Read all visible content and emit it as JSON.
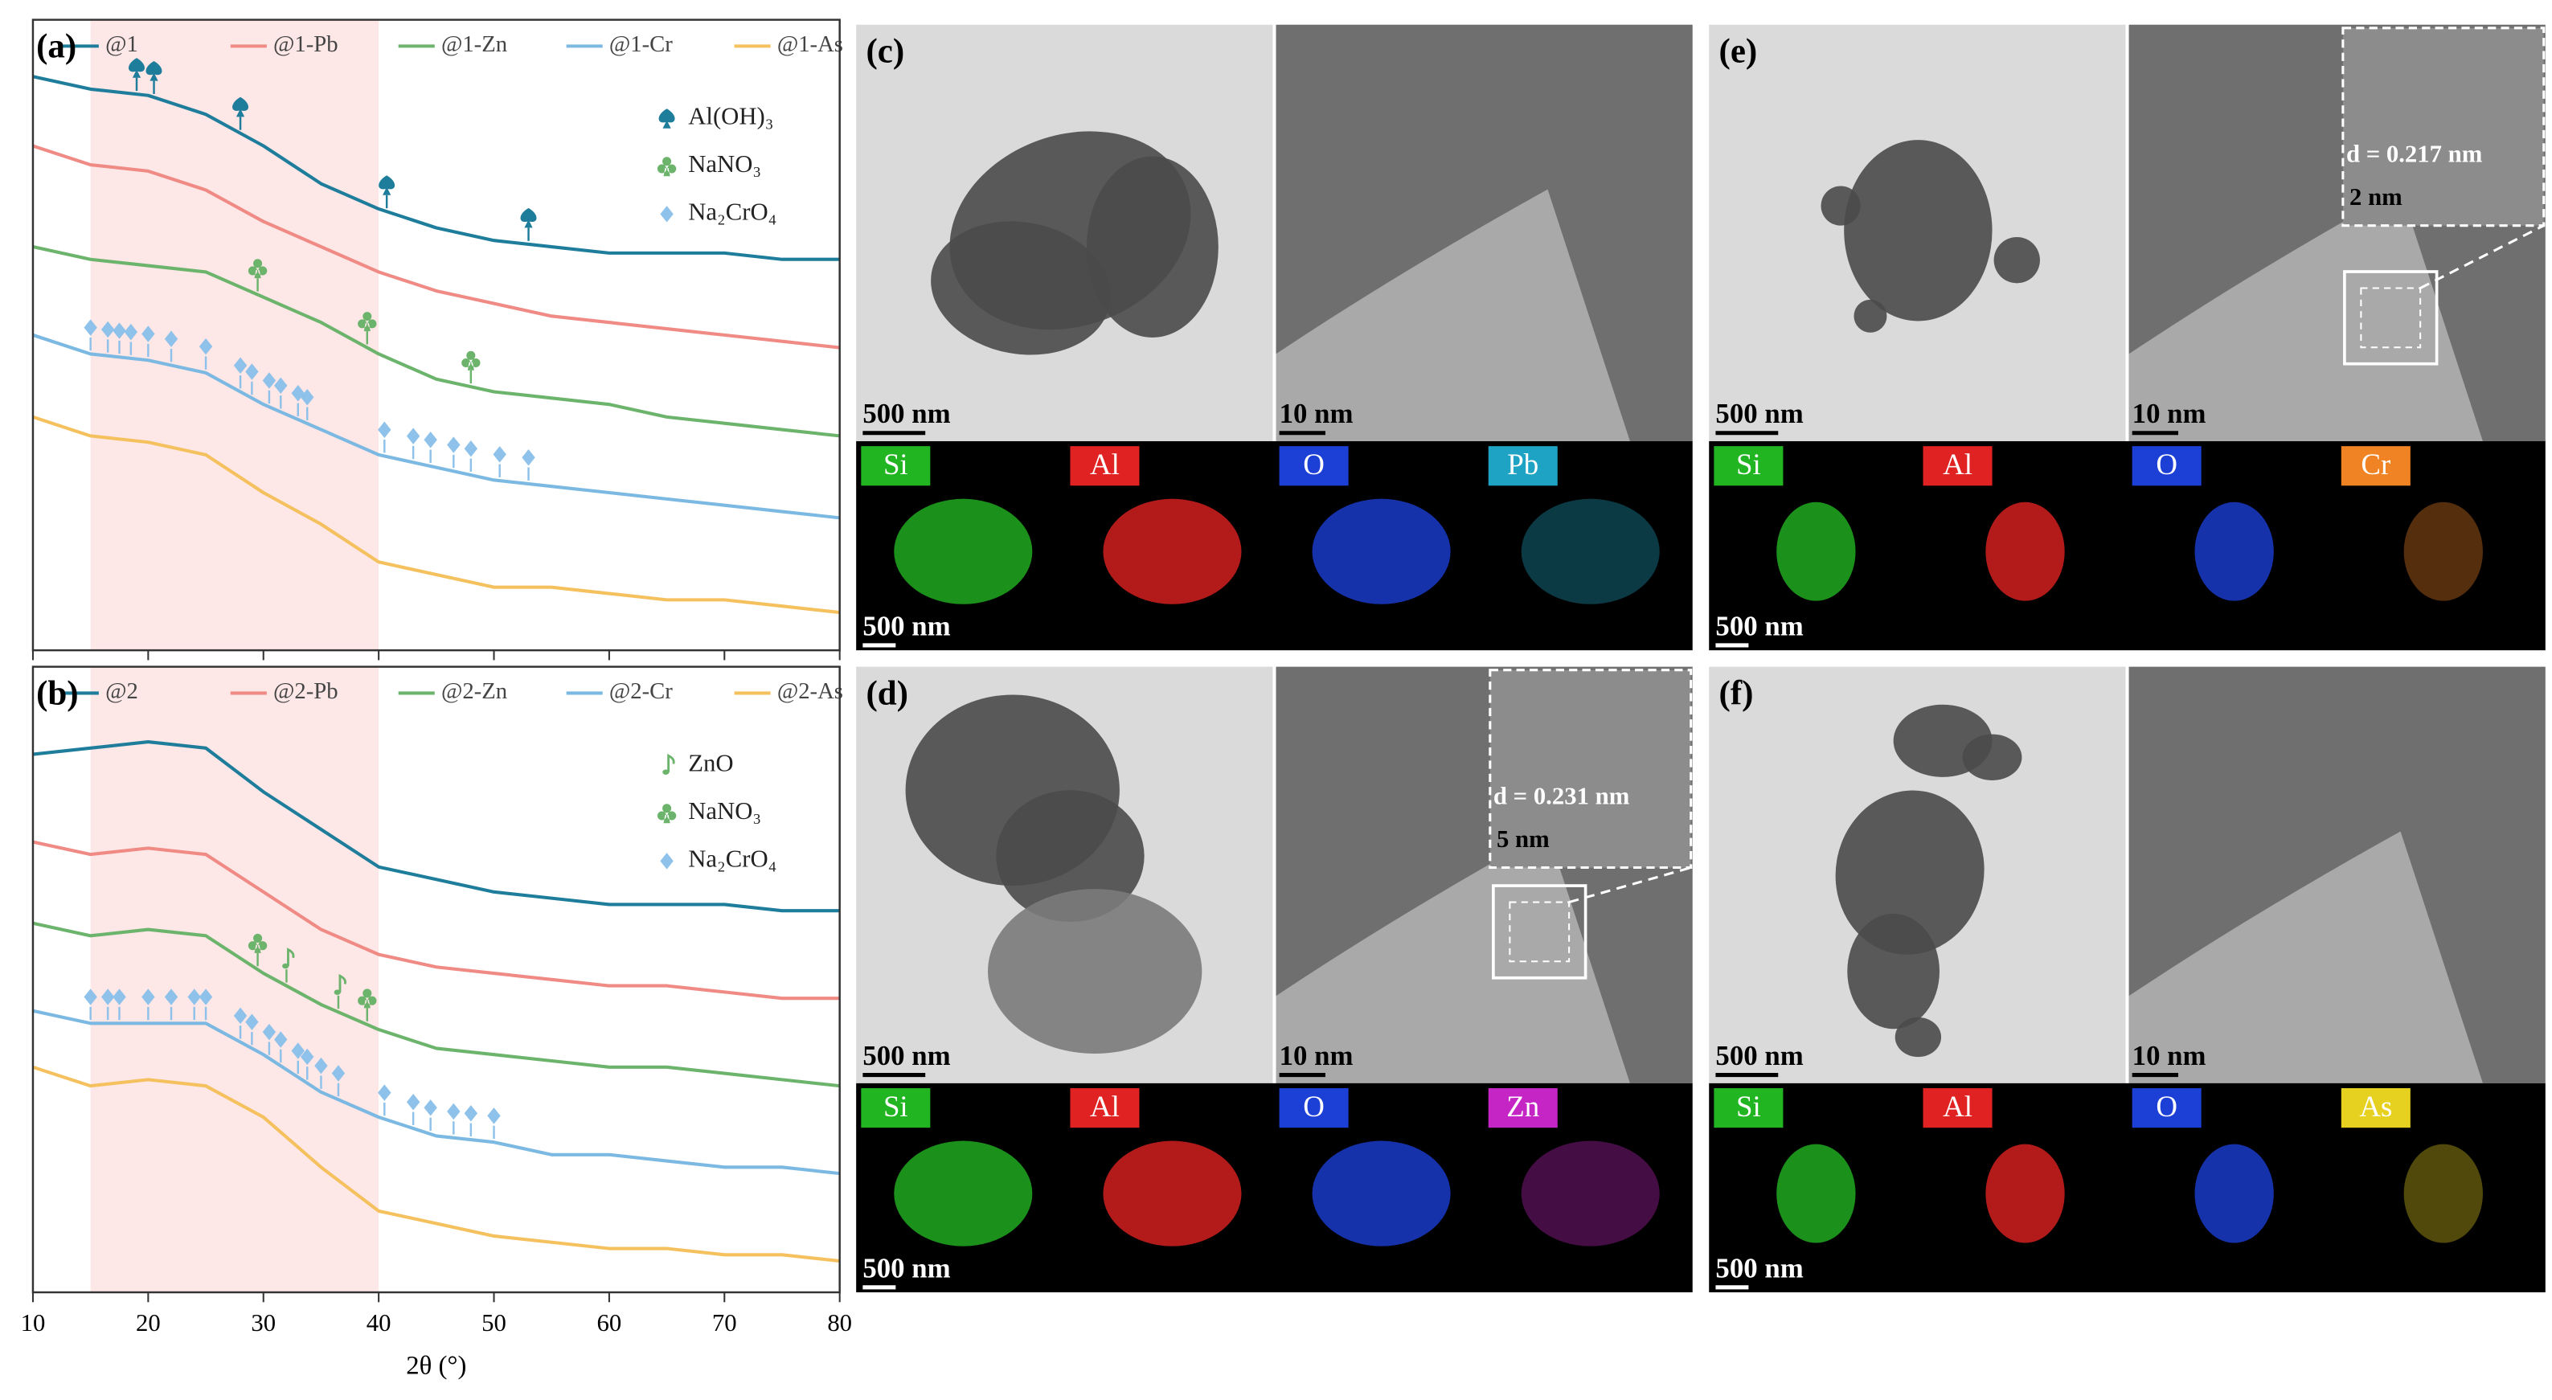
{
  "chart_data": [
    {
      "type": "line",
      "panel_label": "(a)",
      "x": [
        10,
        15,
        20,
        25,
        30,
        35,
        40,
        45,
        50,
        55,
        60,
        65,
        70,
        75,
        80
      ],
      "xlim": [
        10,
        80
      ],
      "xticks": [
        10,
        20,
        30,
        40,
        50,
        60,
        70,
        80
      ],
      "show_xtick_labels": false,
      "ylim": [
        0,
        100
      ],
      "shaded_xrange": [
        15,
        40
      ],
      "shade_color": "#fde7e7",
      "series": [
        {
          "name": "@1",
          "color": "#1f7d9c",
          "values": [
            91,
            89,
            88,
            85,
            80,
            74,
            70,
            67,
            65,
            64,
            63,
            63,
            63,
            62,
            62
          ]
        },
        {
          "name": "@1-Pb",
          "color": "#f08a84",
          "values": [
            80,
            77,
            76,
            73,
            68,
            64,
            60,
            57,
            55,
            53,
            52,
            51,
            50,
            49,
            48
          ]
        },
        {
          "name": "@1-Zn",
          "color": "#6cb46c",
          "values": [
            64,
            62,
            61,
            60,
            56,
            52,
            47,
            43,
            41,
            40,
            39,
            37,
            36,
            35,
            34
          ]
        },
        {
          "name": "@1-Cr",
          "color": "#7cb9e2",
          "values": [
            50,
            47,
            46,
            44,
            39,
            35,
            31,
            29,
            27,
            26,
            25,
            24,
            23,
            22,
            21
          ]
        },
        {
          "name": "@1-As",
          "color": "#f5c15e",
          "values": [
            37,
            34,
            33,
            31,
            25,
            20,
            14,
            12,
            10,
            10,
            9,
            8,
            8,
            7,
            6
          ]
        }
      ],
      "phases": [
        {
          "name": "Al(OH)₃",
          "shape": "spade",
          "color": "#1f7d9c",
          "series": 0,
          "x": [
            19,
            20.5,
            28,
            40.7,
            53
          ]
        },
        {
          "name": "NaNO₃",
          "shape": "club",
          "color": "#6cb46c",
          "series": 2,
          "x": [
            29.5,
            39,
            48
          ]
        },
        {
          "name": "Na₂CrO₄",
          "shape": "diamond",
          "color": "#8ec2ea",
          "series": 3,
          "x": [
            15,
            16.5,
            17.5,
            18.5,
            20,
            22,
            25,
            28,
            29,
            30.5,
            31.5,
            33,
            33.8,
            40.5,
            43,
            44.5,
            46.5,
            48,
            50.5,
            53
          ]
        }
      ]
    },
    {
      "type": "line",
      "panel_label": "(b)",
      "x": [
        10,
        15,
        20,
        25,
        30,
        35,
        40,
        45,
        50,
        55,
        60,
        65,
        70,
        75,
        80
      ],
      "xlim": [
        10,
        80
      ],
      "xticks": [
        10,
        20,
        30,
        40,
        50,
        60,
        70,
        80
      ],
      "show_xtick_labels": true,
      "xlabel": "2θ (°)",
      "ylim": [
        0,
        100
      ],
      "shaded_xrange": [
        15,
        40
      ],
      "shade_color": "#fde7e7",
      "series": [
        {
          "name": "@2",
          "color": "#1f7d9c",
          "values": [
            86,
            87,
            88,
            87,
            80,
            74,
            68,
            66,
            64,
            63,
            62,
            62,
            62,
            61,
            61
          ]
        },
        {
          "name": "@2-Pb",
          "color": "#f08a84",
          "values": [
            72,
            70,
            71,
            70,
            64,
            58,
            54,
            52,
            51,
            50,
            49,
            49,
            48,
            47,
            47
          ]
        },
        {
          "name": "@2-Zn",
          "color": "#6cb46c",
          "values": [
            59,
            57,
            58,
            57,
            51,
            46,
            42,
            39,
            38,
            37,
            36,
            36,
            35,
            34,
            33
          ]
        },
        {
          "name": "@2-Cr",
          "color": "#7cb9e2",
          "values": [
            45,
            43,
            43,
            43,
            38,
            32,
            28,
            25,
            24,
            22,
            22,
            21,
            20,
            20,
            19
          ]
        },
        {
          "name": "@2-As",
          "color": "#f5c15e",
          "values": [
            36,
            33,
            34,
            33,
            28,
            20,
            13,
            11,
            9,
            8,
            7,
            7,
            6,
            6,
            5
          ]
        }
      ],
      "phases": [
        {
          "name": "ZnO",
          "shape": "note",
          "color": "#6cb46c",
          "series": 2,
          "x": [
            32,
            36.5
          ]
        },
        {
          "name": "NaNO₃",
          "shape": "club",
          "color": "#6cb46c",
          "series": 2,
          "x": [
            29.5,
            39
          ]
        },
        {
          "name": "Na₂CrO₄",
          "shape": "diamond",
          "color": "#8ec2ea",
          "series": 3,
          "x": [
            15,
            16.5,
            17.5,
            20,
            22,
            24,
            25,
            28,
            29,
            30.5,
            31.5,
            33,
            33.8,
            35,
            36.5,
            40.5,
            43,
            44.5,
            46.5,
            48,
            50
          ]
        }
      ]
    }
  ],
  "image_panels": [
    {
      "label": "(c)",
      "tem_scale": "500 nm",
      "hrtem_scale": "10 nm",
      "eds_scale": "500 nm",
      "elements": [
        {
          "name": "Si",
          "color": "#22b522"
        },
        {
          "name": "Al",
          "color": "#e02222"
        },
        {
          "name": "O",
          "color": "#1c3fd6"
        },
        {
          "name": "Pb",
          "color": "#1fa3c4"
        }
      ]
    },
    {
      "label": "(d)",
      "tem_scale": "500 nm",
      "hrtem_scale": "10 nm",
      "eds_scale": "500 nm",
      "elements": [
        {
          "name": "Si",
          "color": "#22b522"
        },
        {
          "name": "Al",
          "color": "#e02222"
        },
        {
          "name": "O",
          "color": "#1c3fd6"
        },
        {
          "name": "Zn",
          "color": "#c425c4"
        }
      ],
      "inset": {
        "d_spacing": "d = 0.231 nm",
        "scale": "5 nm"
      }
    },
    {
      "label": "(e)",
      "tem_scale": "500 nm",
      "hrtem_scale": "10 nm",
      "eds_scale": "500 nm",
      "elements": [
        {
          "name": "Si",
          "color": "#22b522"
        },
        {
          "name": "Al",
          "color": "#e02222"
        },
        {
          "name": "O",
          "color": "#1c3fd6"
        },
        {
          "name": "Cr",
          "color": "#f08424"
        }
      ],
      "inset": {
        "d_spacing": "d = 0.217 nm",
        "scale": "2 nm"
      }
    },
    {
      "label": "(f)",
      "tem_scale": "500 nm",
      "hrtem_scale": "10 nm",
      "eds_scale": "500 nm",
      "elements": [
        {
          "name": "Si",
          "color": "#22b522"
        },
        {
          "name": "Al",
          "color": "#e02222"
        },
        {
          "name": "O",
          "color": "#1c3fd6"
        },
        {
          "name": "As",
          "color": "#e6d020"
        }
      ]
    }
  ]
}
